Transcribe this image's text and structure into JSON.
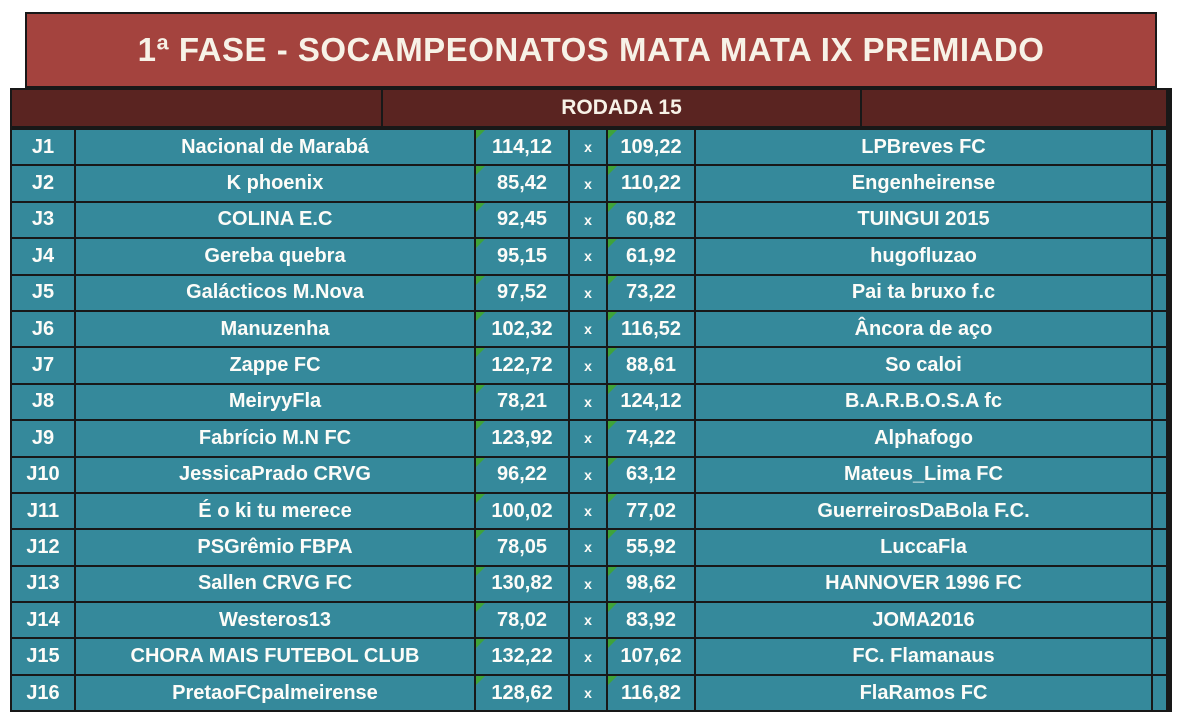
{
  "title": "1ª FASE - SOCAMPEONATOS MATA MATA IX PREMIADO",
  "round": {
    "label": "RODADA 15"
  },
  "labels": {
    "separator": "x"
  },
  "colors": {
    "banner_bg": "#A4433E",
    "round_bg": "#5A2421",
    "cell_bg": "#35899B",
    "grid_border": "#181818",
    "text": "#FDFCF8",
    "indicator_green": "#3FA33A"
  },
  "matches": [
    {
      "id": "J1",
      "home": "Nacional de Marabá",
      "home_score": "114,12",
      "away_score": "109,22",
      "away": "LPBreves FC"
    },
    {
      "id": "J2",
      "home": "K phoenix",
      "home_score": "85,42",
      "away_score": "110,22",
      "away": "Engenheirense"
    },
    {
      "id": "J3",
      "home": "COLINA E.C",
      "home_score": "92,45",
      "away_score": "60,82",
      "away": "TUINGUI 2015"
    },
    {
      "id": "J4",
      "home": "Gereba quebra",
      "home_score": "95,15",
      "away_score": "61,92",
      "away": "hugofluzao"
    },
    {
      "id": "J5",
      "home": "Galácticos M.Nova",
      "home_score": "97,52",
      "away_score": "73,22",
      "away": "Pai ta bruxo f.c"
    },
    {
      "id": "J6",
      "home": "Manuzenha",
      "home_score": "102,32",
      "away_score": "116,52",
      "away": "Âncora de aço"
    },
    {
      "id": "J7",
      "home": "Zappe FC",
      "home_score": "122,72",
      "away_score": "88,61",
      "away": "So caloi"
    },
    {
      "id": "J8",
      "home": "MeiryyFla",
      "home_score": "78,21",
      "away_score": "124,12",
      "away": "B.A.R.B.O.S.A fc"
    },
    {
      "id": "J9",
      "home": "Fabrício M.N FC",
      "home_score": "123,92",
      "away_score": "74,22",
      "away": "Alphafogo"
    },
    {
      "id": "J10",
      "home": "JessicaPrado CRVG",
      "home_score": "96,22",
      "away_score": "63,12",
      "away": "Mateus_Lima FC"
    },
    {
      "id": "J11",
      "home": "É o ki tu merece",
      "home_score": "100,02",
      "away_score": "77,02",
      "away": "GuerreirosDaBola F.C."
    },
    {
      "id": "J12",
      "home": "PSGrêmio FBPA",
      "home_score": "78,05",
      "away_score": "55,92",
      "away": "LuccaFla"
    },
    {
      "id": "J13",
      "home": "Sallen CRVG FC",
      "home_score": "130,82",
      "away_score": "98,62",
      "away": "HANNOVER 1996 FC"
    },
    {
      "id": "J14",
      "home": "Westeros13",
      "home_score": "78,02",
      "away_score": "83,92",
      "away": "JOMA2016"
    },
    {
      "id": "J15",
      "home": "CHORA MAIS FUTEBOL CLUB",
      "home_score": "132,22",
      "away_score": "107,62",
      "away": "FC. Flamanaus"
    },
    {
      "id": "J16",
      "home": "PretaoFCpalmeirense",
      "home_score": "128,62",
      "away_score": "116,82",
      "away": "FlaRamos FC"
    }
  ]
}
